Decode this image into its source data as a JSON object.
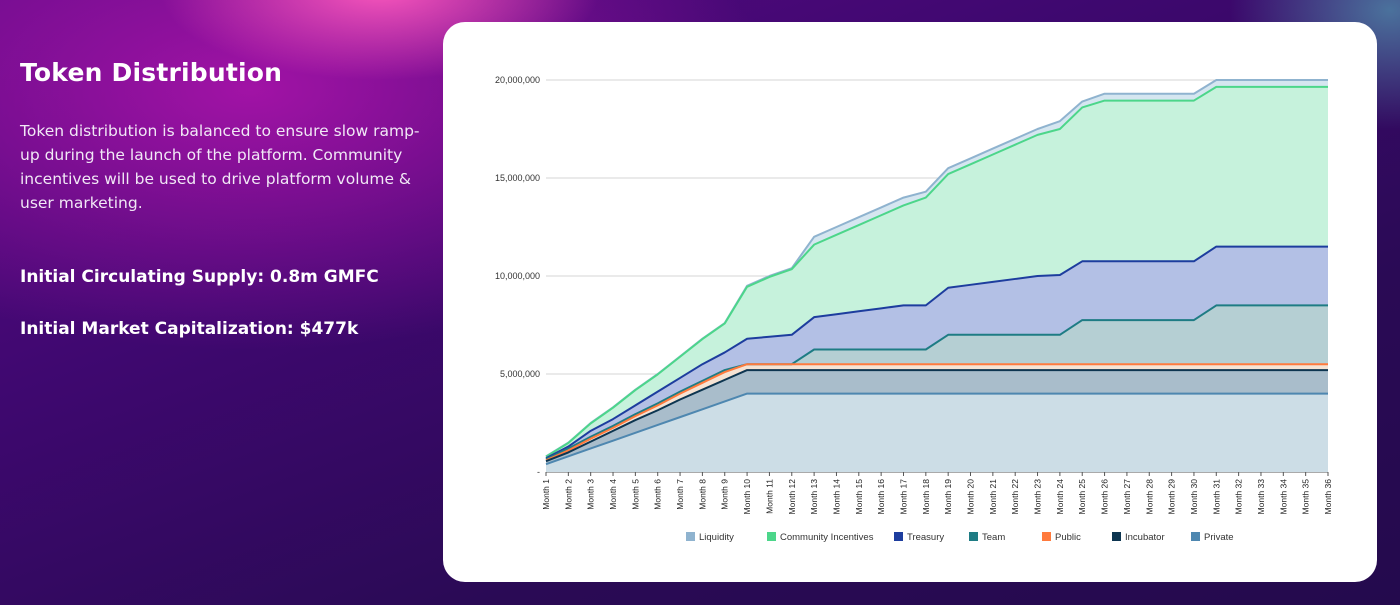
{
  "page": {
    "title": "Token Distribution",
    "description": "Token distribution is balanced to ensure slow ramp-up during the launch of the platform. Community incentives will be used to drive platform volume & user marketing.",
    "circulating_supply": "Initial Circulating Supply: 0.8m GMFC",
    "market_cap": "Initial Market Capitalization: $477k"
  },
  "chart_data": {
    "type": "area",
    "stacked": false,
    "x": [
      "Month 1",
      "Month 2",
      "Month 3",
      "Month 4",
      "Month 5",
      "Month 6",
      "Month 7",
      "Month 8",
      "Month 9",
      "Month 10",
      "Month 11",
      "Month 12",
      "Month 13",
      "Month 14",
      "Month 15",
      "Month 16",
      "Month 17",
      "Month 18",
      "Month 19",
      "Month 20",
      "Month 21",
      "Month 22",
      "Month 23",
      "Month 24",
      "Month 25",
      "Month 26",
      "Month 27",
      "Month 28",
      "Month 29",
      "Month 30",
      "Month 31",
      "Month 32",
      "Month 33",
      "Month 34",
      "Month 35",
      "Month 36"
    ],
    "ylim": [
      0,
      20000000
    ],
    "yticks": [
      0,
      5000000,
      10000000,
      15000000,
      20000000
    ],
    "ytick_labels": [
      "-",
      "5,000,000",
      "10,000,000",
      "15,000,000",
      "20,000,000"
    ],
    "grid": true,
    "legend_position": "bottom",
    "series": [
      {
        "name": "Liquidity",
        "color": "#8fb3cf",
        "fill": "#d5e6f0",
        "values": [
          800000,
          1500000,
          2500000,
          3300000,
          4200000,
          5000000,
          5900000,
          6800000,
          7600000,
          9500000,
          10000000,
          10400000,
          12000000,
          12500000,
          13000000,
          13500000,
          14000000,
          14300000,
          15500000,
          16000000,
          16500000,
          17000000,
          17500000,
          17900000,
          18900000,
          19300000,
          19300000,
          19300000,
          19300000,
          19300000,
          20000000,
          20000000,
          20000000,
          20000000,
          20000000,
          20000000
        ]
      },
      {
        "name": "Community Incentives",
        "color": "#4cd68a",
        "fill": "#c6f2dc",
        "values": [
          780000,
          1480000,
          2480000,
          3280000,
          4180000,
          4980000,
          5880000,
          6780000,
          7580000,
          9450000,
          9950000,
          10350000,
          11600000,
          12100000,
          12600000,
          13100000,
          13600000,
          14000000,
          15200000,
          15700000,
          16200000,
          16700000,
          17200000,
          17500000,
          18600000,
          18950000,
          18950000,
          18950000,
          18950000,
          18950000,
          19650000,
          19650000,
          19650000,
          19650000,
          19650000,
          19650000
        ]
      },
      {
        "name": "Treasury",
        "color": "#1d3d9e",
        "fill": "#b3c0e5",
        "values": [
          700000,
          1300000,
          2100000,
          2700000,
          3400000,
          4100000,
          4800000,
          5500000,
          6100000,
          6800000,
          6900000,
          7000000,
          7900000,
          8050000,
          8200000,
          8350000,
          8500000,
          8500000,
          9400000,
          9550000,
          9700000,
          9850000,
          10000000,
          10050000,
          10750000,
          10750000,
          10750000,
          10750000,
          10750000,
          10750000,
          11500000,
          11500000,
          11500000,
          11500000,
          11500000,
          11500000
        ]
      },
      {
        "name": "Team",
        "color": "#1e7c84",
        "fill": "#b5cfd3",
        "values": [
          650000,
          1200000,
          1800000,
          2350000,
          2950000,
          3500000,
          4100000,
          4650000,
          5200000,
          5500000,
          5500000,
          5500000,
          6250000,
          6250000,
          6250000,
          6250000,
          6250000,
          6250000,
          7000000,
          7000000,
          7000000,
          7000000,
          7000000,
          7000000,
          7750000,
          7750000,
          7750000,
          7750000,
          7750000,
          7750000,
          8500000,
          8500000,
          8500000,
          8500000,
          8500000,
          8500000
        ]
      },
      {
        "name": "Public",
        "color": "#ff7a3d",
        "fill": "#f5e3d4",
        "values": [
          600000,
          1100000,
          1700000,
          2250000,
          2850000,
          3400000,
          4000000,
          4550000,
          5100000,
          5500000,
          5500000,
          5500000,
          5500000,
          5500000,
          5500000,
          5500000,
          5500000,
          5500000,
          5500000,
          5500000,
          5500000,
          5500000,
          5500000,
          5500000,
          5500000,
          5500000,
          5500000,
          5500000,
          5500000,
          5500000,
          5500000,
          5500000,
          5500000,
          5500000,
          5500000,
          5500000
        ]
      },
      {
        "name": "Incubator",
        "color": "#0d3550",
        "fill": "#a9bdcb",
        "values": [
          550000,
          1000000,
          1550000,
          2100000,
          2650000,
          3150000,
          3700000,
          4200000,
          4700000,
          5200000,
          5200000,
          5200000,
          5200000,
          5200000,
          5200000,
          5200000,
          5200000,
          5200000,
          5200000,
          5200000,
          5200000,
          5200000,
          5200000,
          5200000,
          5200000,
          5200000,
          5200000,
          5200000,
          5200000,
          5200000,
          5200000,
          5200000,
          5200000,
          5200000,
          5200000,
          5200000
        ]
      },
      {
        "name": "Private",
        "color": "#4e87b0",
        "fill": "#ccdde6",
        "values": [
          400000,
          800000,
          1200000,
          1600000,
          2000000,
          2400000,
          2800000,
          3200000,
          3600000,
          4000000,
          4000000,
          4000000,
          4000000,
          4000000,
          4000000,
          4000000,
          4000000,
          4000000,
          4000000,
          4000000,
          4000000,
          4000000,
          4000000,
          4000000,
          4000000,
          4000000,
          4000000,
          4000000,
          4000000,
          4000000,
          4000000,
          4000000,
          4000000,
          4000000,
          4000000,
          4000000
        ]
      }
    ]
  }
}
